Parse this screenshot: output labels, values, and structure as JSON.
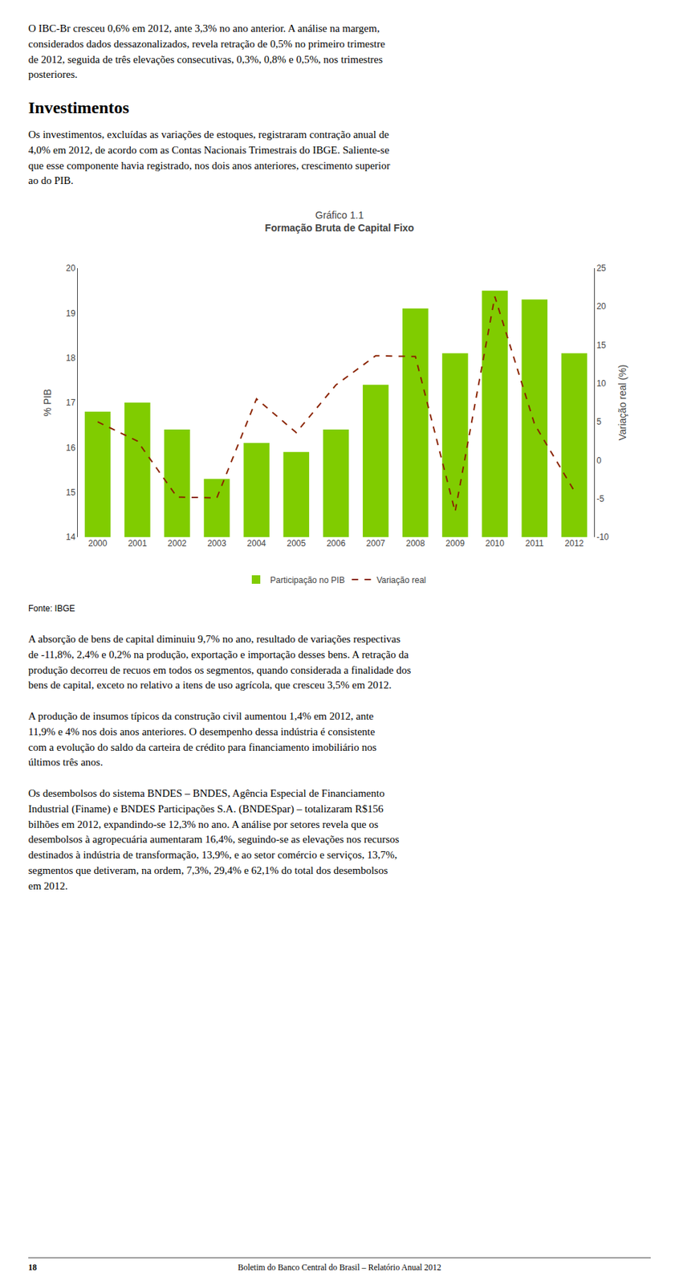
{
  "chart_data": {
    "type": "bar",
    "title": "Gráfico 1.1",
    "subtitle": "Formação Bruta de Capital Fixo",
    "categories": [
      "2000",
      "2001",
      "2002",
      "2003",
      "2004",
      "2005",
      "2006",
      "2007",
      "2008",
      "2009",
      "2010",
      "2011",
      "2012"
    ],
    "series": [
      {
        "name": "Participação no PIB",
        "type": "bar",
        "color": "#80CC00",
        "values": [
          16.8,
          17.0,
          16.4,
          15.3,
          16.1,
          15.9,
          16.4,
          17.4,
          19.1,
          18.1,
          19.5,
          19.3,
          18.1
        ]
      },
      {
        "name": "Variação real",
        "type": "line",
        "color": "#8B2500",
        "line_style": "dashed",
        "axis": "y2",
        "values": [
          5.0,
          2.5,
          -4.8,
          -4.9,
          8.0,
          3.6,
          9.8,
          13.6,
          13.5,
          -6.7,
          21.3,
          4.7,
          -4.0
        ]
      }
    ],
    "ylabel": "% PIB",
    "y2label": "Variação real (%)",
    "ylim": [
      14,
      20
    ],
    "yticks": [
      14,
      15,
      16,
      17,
      18,
      19,
      20
    ],
    "y2lim": [
      -10,
      25
    ],
    "y2ticks": [
      -10,
      -5,
      0,
      5,
      10,
      15,
      20,
      25
    ],
    "grid": false,
    "legend": "bottom",
    "source": "Fonte: IBGE"
  },
  "page": {
    "intro": "O IBC-Br cresceu 0,6% em 2012, ante 3,3% no ano anterior. A análise na margem,\nconsiderados dados dessazonalizados, revela retração de 0,5% no primeiro trimestre\nde 2012, seguida de três elevações consecutivas, 0,3%, 0,8% e 0,5%, nos trimestres\nposteriores.",
    "heading": "Investimentos",
    "heading_text": "Os investimentos, excluídas as variações de estoques, registraram contração anual de\n4,0% em 2012, de acordo com as Contas Nacionais Trimestrais do IBGE. Saliente-se\nque esse componente havia registrado, nos dois anos anteriores, crescimento superior\nao do PIB.",
    "after_chart": [
      "A absorção de bens de capital diminuiu 9,7% no ano, resultado de variações respectivas\nde -11,8%, 2,4% e 0,2% na produção, exportação e importação desses bens. A retração da\nprodução decorreu de recuos em todos os segmentos, quando considerada a finalidade dos\nbens de capital, exceto no relativo a itens de uso agrícola, que cresceu 3,5% em 2012.",
      "A produção de insumos típicos da construção civil aumentou 1,4% em 2012, ante\n11,9% e 4% nos dois anos anteriores. O desempenho dessa indústria é consistente\ncom a evolução do saldo da carteira de crédito para financiamento imobiliário nos\núltimos três anos.",
      "Os desembolsos do sistema BNDES – BNDES, Agência Especial de Financiamento\nIndustrial (Finame) e BNDES Participações S.A. (BNDESpar) – totalizaram R$156\nbilhões em 2012, expandindo-se 12,3% no ano. A análise por setores revela que os\ndesembolsos à agropecuária aumentaram 16,4%, seguindo-se as elevações nos recursos\ndestinados à indústria de transformação, 13,9%, e ao setor comércio e serviços, 13,7%,\nsegmentos que detiveram, na ordem, 7,3%, 29,4% e 62,1% do total dos desembolsos\nem 2012."
    ],
    "footer_number": "18",
    "footer": "Boletim do Banco Central do Brasil – Relatório Anual 2012"
  }
}
